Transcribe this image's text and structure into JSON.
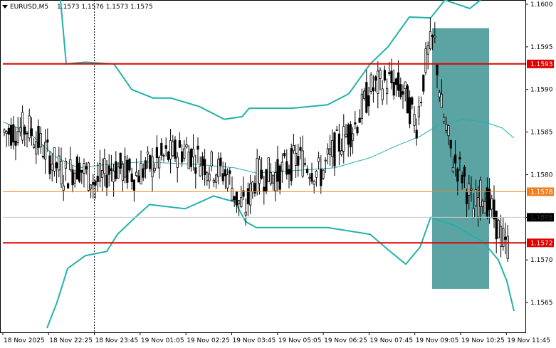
{
  "header": {
    "symbol_tf": "EURUSD,M5",
    "ohlc": "1.1573 1.1576 1.1573 1.1575"
  },
  "colors": {
    "background": "#ffffff",
    "axis": "#000000",
    "grid": "#c8c8c8",
    "candle": "#000000",
    "bollinger_band": "#20b2aa",
    "bollinger_mid": "#20b2aa",
    "resistance_line": "#e00000",
    "orange_line": "#f08020",
    "zone_fill": "#2e8b8b",
    "price_tag_red": "#e00000",
    "price_tag_orange": "#f08020",
    "price_tag_current": "#000000"
  },
  "chart_data": {
    "type": "candlestick",
    "symbol": "EURUSD",
    "timeframe": "M5",
    "ylim": [
      1.15615,
      1.16005
    ],
    "y_ticks": [
      "1.1600",
      "1.1595",
      "1.1590",
      "1.1585",
      "1.1580",
      "1.1575",
      "1.1570",
      "1.1565"
    ],
    "x_ticks": [
      "18 Nov 2025",
      "18 Nov 22:25",
      "18 Nov 23:45",
      "19 Nov 01:05",
      "19 Nov 02:25",
      "19 Nov 03:45",
      "19 Nov 05:05",
      "19 Nov 06:25",
      "19 Nov 07:45",
      "19 Nov 09:05",
      "19 Nov 10:25",
      "19 Nov 11:45"
    ],
    "horizontal_levels": [
      {
        "price": 1.1593,
        "label": "1.1593",
        "color": "#e00000"
      },
      {
        "price": 1.1578,
        "label": "1.1578",
        "color": "#f08020"
      },
      {
        "price": 1.1572,
        "label": "1.1572",
        "color": "#e00000"
      }
    ],
    "current_price": {
      "price": 1.1575,
      "label": "1.1575"
    },
    "highlight_zone": {
      "x_from": "19 Nov 09:05",
      "x_to": "19 Nov 10:25",
      "price_from": 1.15666,
      "price_to": 1.15972
    },
    "candle_groups": [
      {
        "range": "18 Nov 2025 – 18 Nov 22:25",
        "price_low": 1.1579,
        "price_high": 1.1588
      },
      {
        "range": "18 Nov 22:25 – 19 Nov 02:25",
        "price_low": 1.1578,
        "price_high": 1.1585
      },
      {
        "range": "19 Nov 03:45",
        "price_low": 1.1574,
        "price_high": 1.158
      },
      {
        "range": "19 Nov 05:05 – 19 Nov 06:25",
        "price_low": 1.1579,
        "price_high": 1.1584
      },
      {
        "range": "19 Nov 07:45",
        "price_low": 1.1584,
        "price_high": 1.1591
      },
      {
        "range": "19 Nov 09:05",
        "price_low": 1.1585,
        "price_high": 1.1597
      },
      {
        "range": "19 Nov 10:25",
        "price_low": 1.1571,
        "price_high": 1.1583
      },
      {
        "range": "19 Nov 11:45",
        "price_low": 1.1568,
        "price_high": 1.1576
      }
    ]
  }
}
